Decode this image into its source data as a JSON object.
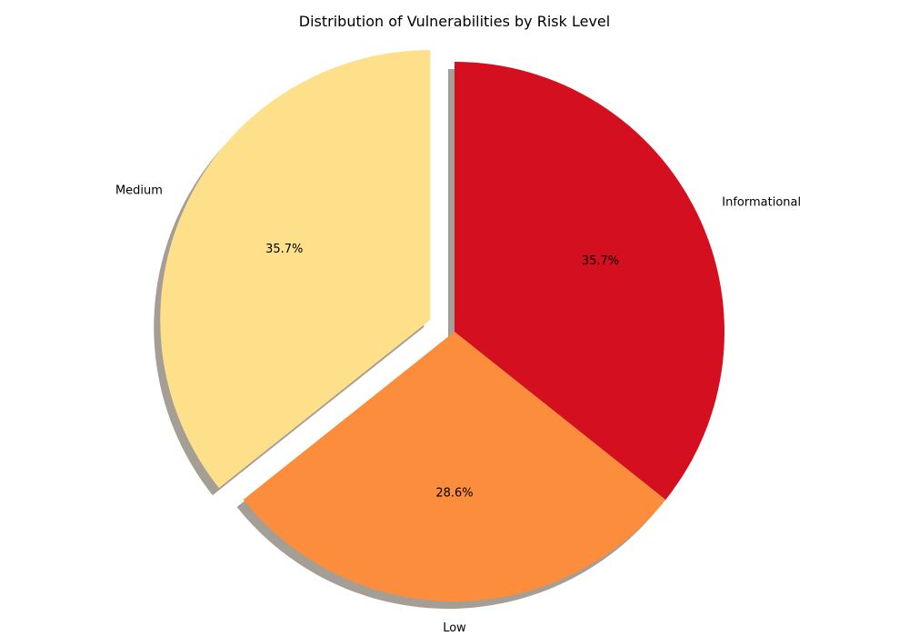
{
  "chart_data": {
    "type": "pie",
    "title": "Distribution of Vulnerabilities by Risk Level",
    "start_angle_deg": 90,
    "direction": "counterclockwise",
    "shadow": true,
    "slices": [
      {
        "label": "Medium",
        "value": 35.7,
        "pct_label": "35.7%",
        "color": "#fee08b",
        "exploded": true
      },
      {
        "label": "Low",
        "value": 28.6,
        "pct_label": "28.6%",
        "color": "#fc8d3c",
        "exploded": false
      },
      {
        "label": "Informational",
        "value": 35.7,
        "pct_label": "35.7%",
        "color": "#d40f20",
        "exploded": false
      }
    ]
  }
}
